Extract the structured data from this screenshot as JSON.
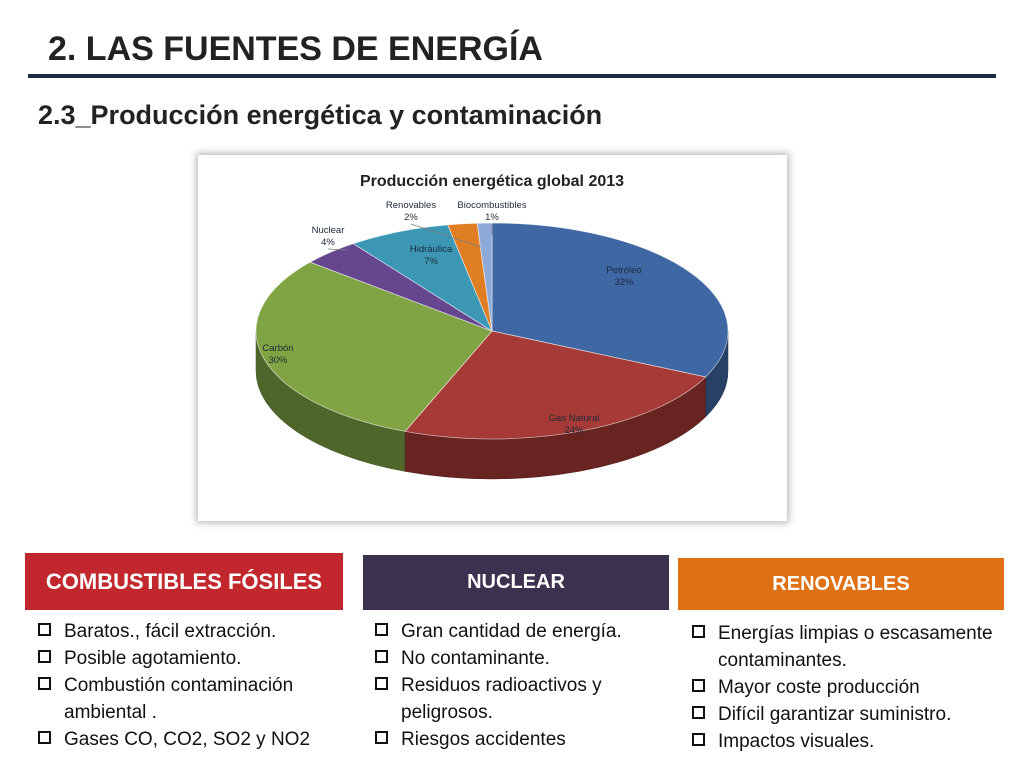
{
  "slide": {
    "title": "2. LAS FUENTES DE ENERGÍA",
    "subtitle": "2.3_Producción energética y contaminación"
  },
  "chart_data": {
    "type": "pie",
    "title": "Producción energética global 2013",
    "three_d": true,
    "slices": [
      {
        "label": "Petróleo",
        "pct_label": "32%",
        "value": 32,
        "color": "#3f67a3"
      },
      {
        "label": "Gas Natural",
        "pct_label": "24%",
        "value": 24,
        "color": "#a63a36"
      },
      {
        "label": "Carbón",
        "pct_label": "30%",
        "value": 30,
        "color": "#80a444"
      },
      {
        "label": "Nuclear",
        "pct_label": "4%",
        "value": 4,
        "color": "#65468f"
      },
      {
        "label": "Hidráulica",
        "pct_label": "7%",
        "value": 7,
        "color": "#3b97b4"
      },
      {
        "label": "Renovables",
        "pct_label": "2%",
        "value": 2,
        "color": "#e07e23"
      },
      {
        "label": "Biocombustibles",
        "pct_label": "1%",
        "value": 1,
        "color": "#8fa9d8"
      }
    ]
  },
  "boxes": [
    {
      "title": "COMBUSTIBLES FÓSILES",
      "items": [
        "Baratos., fácil extracción.",
        "Posible agotamiento.",
        "Combustión contaminación ambiental .",
        "Gases CO, CO2, SO2 y NO2"
      ]
    },
    {
      "title": "NUCLEAR",
      "items": [
        "Gran cantidad de energía.",
        "No contaminante.",
        "Residuos radioactivos y peligrosos.",
        "Riesgos accidentes"
      ]
    },
    {
      "title": "RENOVABLES",
      "items": [
        "Energías limpias o escasamente contaminantes.",
        "Mayor coste producción",
        "Difícil garantizar suministro.",
        "Impactos visuales."
      ]
    }
  ]
}
